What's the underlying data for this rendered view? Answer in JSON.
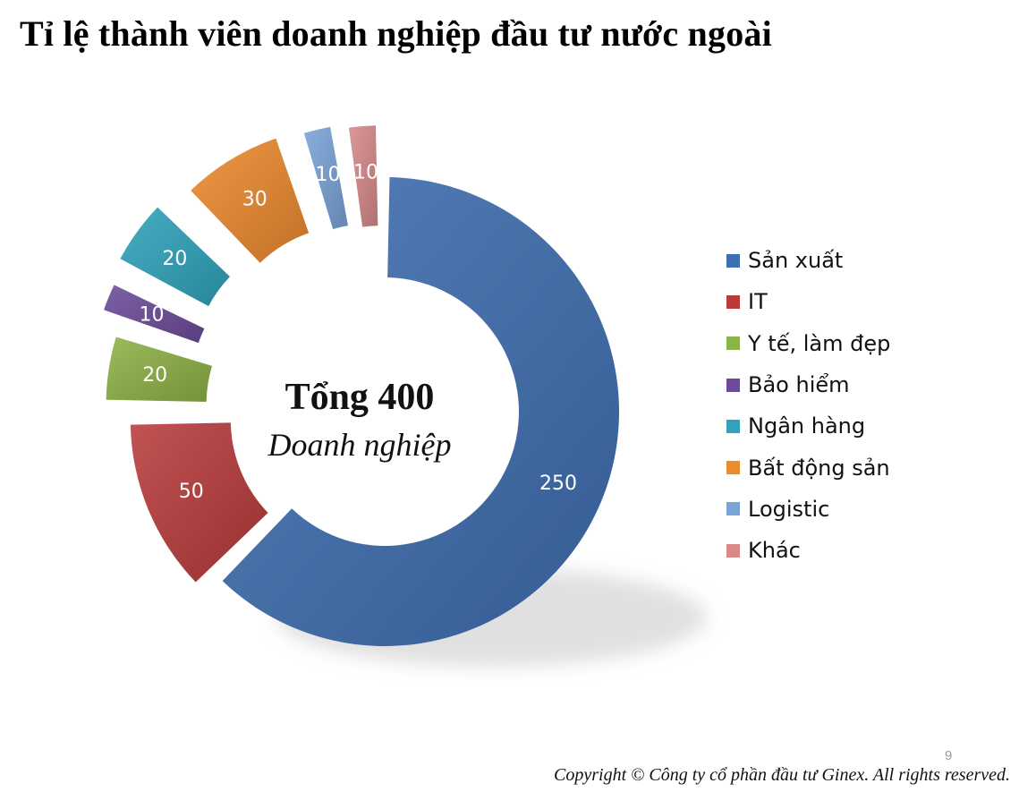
{
  "title": "Tỉ lệ thành viên doanh nghiệp đầu tư nước ngoài",
  "center": {
    "main": "Tổng 400",
    "sub": "Doanh nghiệp"
  },
  "chart_data": {
    "type": "pie",
    "style": "exploded-donut",
    "categories": [
      "Sản xuất",
      "IT",
      "Y tế, làm đẹp",
      "Bảo hiểm",
      "Ngân hàng",
      "Bất động sản",
      "Logistic",
      "Khác"
    ],
    "values": [
      250,
      50,
      20,
      10,
      20,
      30,
      10,
      10
    ],
    "data_labels": [
      "250",
      "50",
      "20",
      "10",
      "20",
      "30",
      "10",
      "10"
    ],
    "total": 400,
    "colors": [
      "#3f6fb2",
      "#b83b3b",
      "#8db246",
      "#6c4c9a",
      "#2fa3bb",
      "#ec8a2e",
      "#7aa3d8",
      "#d88a8a"
    ],
    "legend_position": "right"
  },
  "legend": {
    "items": [
      {
        "label": "Sản xuất",
        "color": "#3f6fb2"
      },
      {
        "label": "IT",
        "color": "#b83b3b"
      },
      {
        "label": "Y tế, làm đẹp",
        "color": "#8db246"
      },
      {
        "label": "Bảo hiểm",
        "color": "#6c4c9a"
      },
      {
        "label": "Ngân hàng",
        "color": "#2fa3bb"
      },
      {
        "label": "Bất động sản",
        "color": "#ec8a2e"
      },
      {
        "label": "Logistic",
        "color": "#7aa3d8"
      },
      {
        "label": "Khác",
        "color": "#d88a8a"
      }
    ]
  },
  "page_number": "9",
  "copyright": "Copyright © Công ty cổ phần đầu tư Ginex. All rights reserved."
}
